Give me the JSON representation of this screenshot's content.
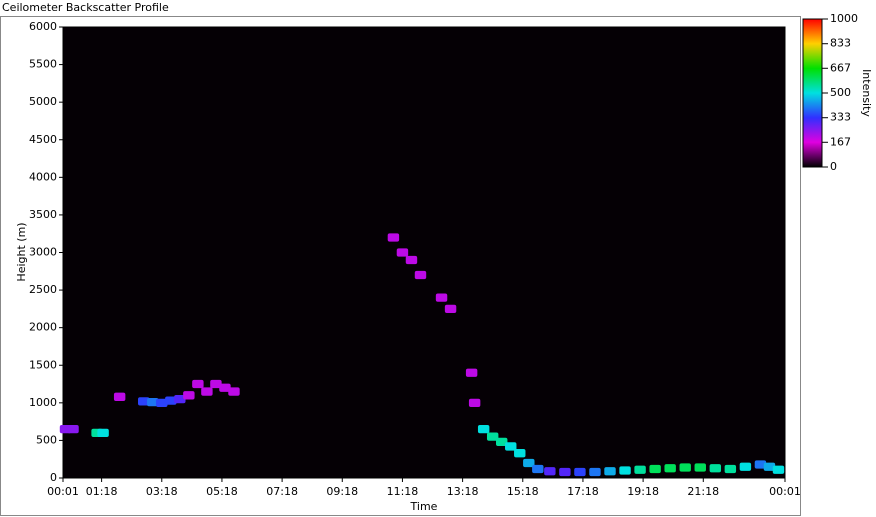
{
  "chart_data": {
    "type": "heatmap",
    "title": "Ceilometer Backscatter Profile",
    "xlabel": "Time",
    "ylabel": "Height (m)",
    "colorbar_label": "Intensity",
    "xlim": [
      0.0167,
      24.0167
    ],
    "xticks": [
      {
        "value": 0.0167,
        "label": "00:01"
      },
      {
        "value": 1.3,
        "label": "01:18"
      },
      {
        "value": 3.3,
        "label": "03:18"
      },
      {
        "value": 5.3,
        "label": "05:18"
      },
      {
        "value": 7.3,
        "label": "07:18"
      },
      {
        "value": 9.3,
        "label": "09:18"
      },
      {
        "value": 11.3,
        "label": "11:18"
      },
      {
        "value": 13.3,
        "label": "13:18"
      },
      {
        "value": 15.3,
        "label": "15:18"
      },
      {
        "value": 17.3,
        "label": "17:18"
      },
      {
        "value": 19.3,
        "label": "19:18"
      },
      {
        "value": 21.3,
        "label": "21:18"
      },
      {
        "value": 24.0167,
        "label": "00:01"
      }
    ],
    "ylim": [
      0,
      6000
    ],
    "yticks": [
      0,
      500,
      1000,
      1500,
      2000,
      2500,
      3000,
      3500,
      4000,
      4500,
      5000,
      5500,
      6000
    ],
    "clim": [
      0,
      1000
    ],
    "cticks": [
      0,
      167,
      333,
      500,
      667,
      833,
      1000
    ],
    "colorscale": [
      "#000000",
      "#e000e0",
      "#3030ff",
      "#00e0e0",
      "#00e000",
      "#ffd000",
      "#ff0000"
    ],
    "x": [
      0.1,
      0.35,
      1.15,
      1.35,
      1.9,
      2.7,
      3.0,
      3.3,
      3.6,
      3.9,
      4.2,
      4.5,
      4.8,
      5.1,
      5.4,
      5.7,
      11.0,
      11.3,
      11.6,
      11.9,
      12.6,
      12.9,
      13.6,
      13.7,
      14.0,
      14.3,
      14.6,
      14.9,
      15.2,
      15.5,
      15.8,
      16.2,
      16.7,
      17.2,
      17.7,
      18.2,
      18.7,
      19.2,
      19.7,
      20.2,
      20.7,
      21.2,
      21.7,
      22.2,
      22.7,
      23.2,
      23.5,
      23.8
    ],
    "y": [
      650,
      650,
      600,
      600,
      1080,
      1020,
      1010,
      1000,
      1030,
      1050,
      1100,
      1250,
      1150,
      1250,
      1200,
      1150,
      3200,
      3000,
      2900,
      2700,
      2400,
      2250,
      1400,
      1000,
      650,
      550,
      480,
      420,
      330,
      200,
      120,
      90,
      80,
      80,
      80,
      90,
      100,
      110,
      120,
      130,
      140,
      140,
      130,
      120,
      150,
      180,
      150,
      110
    ],
    "values": [
      250,
      250,
      550,
      500,
      200,
      350,
      400,
      350,
      350,
      300,
      200,
      200,
      200,
      200,
      200,
      200,
      200,
      200,
      200,
      200,
      200,
      200,
      200,
      200,
      500,
      550,
      550,
      500,
      500,
      450,
      400,
      300,
      300,
      350,
      400,
      450,
      500,
      550,
      600,
      600,
      600,
      600,
      550,
      550,
      500,
      400,
      450,
      500
    ]
  }
}
